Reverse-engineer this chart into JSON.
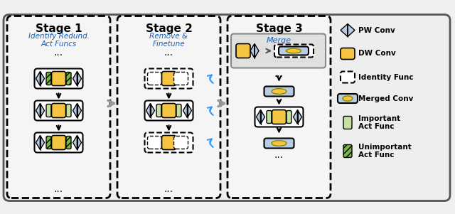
{
  "bg_color": "#f0f0f0",
  "outer_box_color": "#333333",
  "stage1_title": "Stage 1",
  "stage1_subtitle": "Identify Redund.\nAct Funcs",
  "stage2_title": "Stage 2",
  "stage2_subtitle": "Remove &\nFinetune",
  "stage3_title": "Stage 3",
  "stage3_subtitle": "Merge",
  "dw_color": "#f5c542",
  "pw_color": "#b8cce4",
  "act_important_color": "#c6e0a0",
  "act_unimportant_color": "#7ab648",
  "merged_color": "#f5c542",
  "identity_dash": "dashed",
  "legend_labels": [
    "PW Conv",
    "DW Conv",
    "Identity Func",
    "Merged Conv",
    "Important\nAct Func",
    "Unimportant\nAct Func"
  ],
  "stage_blue": "#1a5fb4",
  "stage_title_color": "#000000",
  "arrow_gray": "#888888",
  "arrow_blue": "#3399ff"
}
